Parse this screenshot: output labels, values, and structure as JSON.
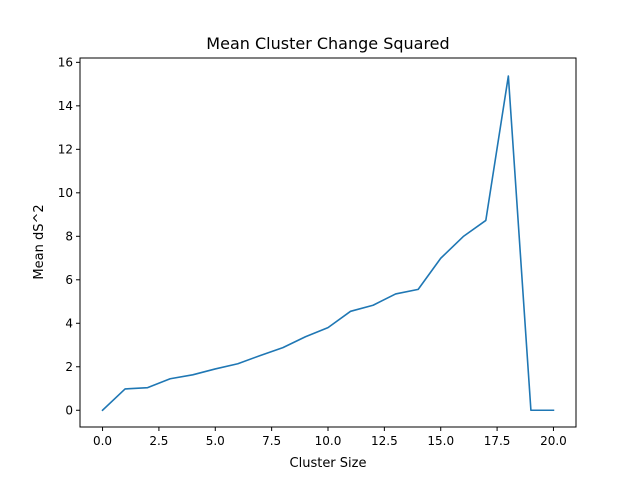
{
  "chart_data": {
    "type": "line",
    "title": "Mean Cluster Change Squared",
    "xlabel": "Cluster Size",
    "ylabel": "Mean dS^2",
    "xlim": [
      -1.0,
      21.0
    ],
    "ylim": [
      -0.77,
      16.2
    ],
    "x_ticks": [
      0,
      2.5,
      5,
      7.5,
      10,
      12.5,
      15,
      17.5,
      20
    ],
    "x_tick_labels": [
      "0.0",
      "2.5",
      "5.0",
      "7.5",
      "10.0",
      "12.5",
      "15.0",
      "17.5",
      "20.0"
    ],
    "y_ticks": [
      0,
      2,
      4,
      6,
      8,
      10,
      12,
      14,
      16
    ],
    "y_tick_labels": [
      "0",
      "2",
      "4",
      "6",
      "8",
      "10",
      "12",
      "14",
      "16"
    ],
    "grid": false,
    "series": [
      {
        "name": "Mean dS^2",
        "color": "#1f77b4",
        "x": [
          0,
          1,
          2,
          3,
          4,
          5,
          6,
          7,
          8,
          9,
          10,
          11,
          12,
          13,
          14,
          15,
          16,
          17,
          18,
          19,
          20
        ],
        "y": [
          0.0,
          0.98,
          1.04,
          1.45,
          1.63,
          1.9,
          2.14,
          2.52,
          2.88,
          3.38,
          3.8,
          4.55,
          4.83,
          5.35,
          5.56,
          6.99,
          7.99,
          8.73,
          15.37,
          0.0,
          0.0
        ]
      }
    ]
  }
}
